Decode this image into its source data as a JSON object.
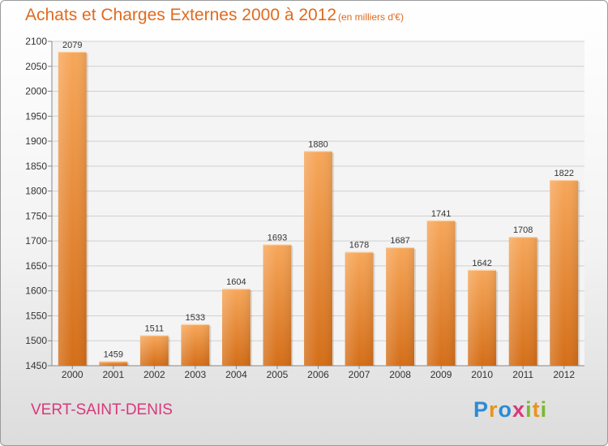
{
  "chart_data": {
    "type": "bar",
    "title": "Achats et Charges Externes 2000 à 2012",
    "subtitle": "(en milliers d'€)",
    "categories": [
      "2000",
      "2001",
      "2002",
      "2003",
      "2004",
      "2005",
      "2006",
      "2007",
      "2008",
      "2009",
      "2010",
      "2011",
      "2012"
    ],
    "values": [
      2079,
      1459,
      1511,
      1533,
      1604,
      1693,
      1880,
      1678,
      1687,
      1741,
      1642,
      1708,
      1822
    ],
    "ylim": [
      1450,
      2100
    ],
    "yticks": [
      1450,
      1500,
      1550,
      1600,
      1650,
      1700,
      1750,
      1800,
      1850,
      1900,
      1950,
      2000,
      2050,
      2100
    ],
    "grid": true,
    "xlabel": "",
    "ylabel": "",
    "bar_color": "#f0902f"
  },
  "footer": {
    "city": "VERT-SAINT-DENIS",
    "brand": "Proxiti",
    "brand_letters": [
      "P",
      "r",
      "o",
      "x",
      "i",
      "t",
      "i"
    ],
    "brand_colors": [
      "#2b8bd6",
      "#e8941e",
      "#2b8bd6",
      "#d8387a",
      "#7bb92f",
      "#e8941e",
      "#7bb92f"
    ]
  },
  "colors": {
    "title": "#e06a1e",
    "city": "#d8387a"
  }
}
